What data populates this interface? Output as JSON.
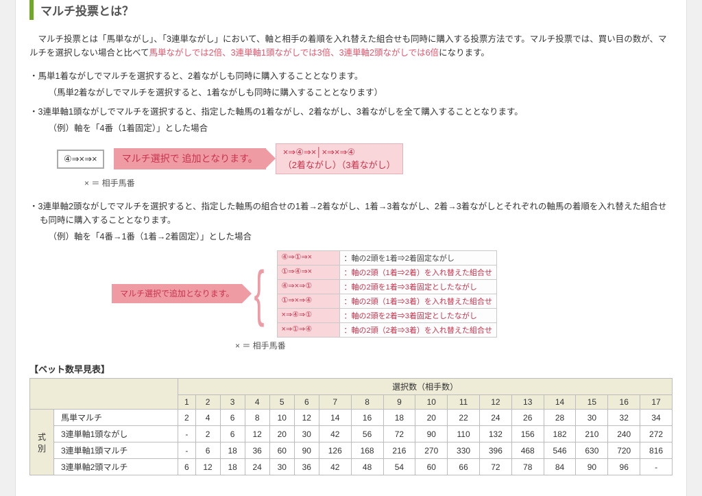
{
  "heading": "マルチ投票とは？",
  "intro": {
    "pre": "　マルチ投票とは「馬単ながし」、「3連単ながし」において、軸と相手の着順を入れ替えた組合せも同時に購入する投票方法です。マルチ投票では、買い目の数が、マルチを選択しない場合と比べて",
    "red": "馬単ながしでは2倍、3連単軸1頭ながしでは3倍、3連単軸2頭ながしでは6倍",
    "post": "になります。"
  },
  "bullet1": {
    "line1": "・馬単1着ながしでマルチを選択すると、2着ながしも同時に購入することとなります。",
    "line2": "（馬単2着ながしでマルチを選択すると、1着ながしも同時に購入することとなります）"
  },
  "bullet2": {
    "line1": "・3連単軸1頭ながしでマルチを選択すると、指定した軸馬の1着ながし、2着ながし、3着ながしを全て購入することとなります。",
    "line2": "（例）軸を「4番（1着固定）」とした場合"
  },
  "diagram1": {
    "pattern": "④⇒×⇒×",
    "callout": "マルチ選択で\n追加となります。",
    "result_line1": "×⇒④⇒×│×⇒×⇒④",
    "result_line2": "（2着ながし）（3着ながし）",
    "caption": "× ＝ 相手馬番"
  },
  "bullet3": {
    "line1": "・3連単軸2頭ながしでマルチを選択すると、指定した軸馬の組合せの1着→2着ながし、1着→3着ながし、2着→3着ながしとそれぞれの軸馬の着順を入れ替えた組合せも同時に購入することとなります。",
    "line2": "（例）軸を「4番→1番（1着→2着固定）」とした場合"
  },
  "diagram2": {
    "callout": "マルチ選択で追加となります。",
    "rows": [
      {
        "pat": "④⇒①⇒×",
        "desc": "：軸の2頭を1着⇒2着固定ながし",
        "sel": false
      },
      {
        "pat": "①⇒④⇒×",
        "desc": "：軸の2頭（1着⇒2着）を入れ替えた組合せ",
        "sel": true
      },
      {
        "pat": "④⇒×⇒①",
        "desc": "：軸の2頭を1着⇒3着固定としたながし",
        "sel": true
      },
      {
        "pat": "①⇒×⇒④",
        "desc": "：軸の2頭（1着⇒3着）を入れ替えた組合せ",
        "sel": true
      },
      {
        "pat": "×⇒④⇒①",
        "desc": "：軸の2頭を2着⇒3着固定としたながし",
        "sel": true
      },
      {
        "pat": "×⇒①⇒④",
        "desc": "：軸の2頭（2着⇒3着）を入れ替えた組合せ",
        "sel": true
      }
    ],
    "caption": "× ＝ 相手馬番"
  },
  "table": {
    "title": "【ベット数早見表】",
    "top_header": "選択数（相手数）",
    "side_header": "式別",
    "cols": [
      "1",
      "2",
      "3",
      "4",
      "5",
      "6",
      "7",
      "8",
      "9",
      "10",
      "11",
      "12",
      "13",
      "14",
      "15",
      "16",
      "17"
    ],
    "rows": [
      {
        "label": "馬単マルチ",
        "vals": [
          "2",
          "4",
          "6",
          "8",
          "10",
          "12",
          "14",
          "16",
          "18",
          "20",
          "22",
          "24",
          "26",
          "28",
          "30",
          "32",
          "34"
        ]
      },
      {
        "label": "3連単軸1頭ながし",
        "vals": [
          "-",
          "2",
          "6",
          "12",
          "20",
          "30",
          "42",
          "56",
          "72",
          "90",
          "110",
          "132",
          "156",
          "182",
          "210",
          "240",
          "272"
        ]
      },
      {
        "label": "3連単軸1頭マルチ",
        "vals": [
          "-",
          "6",
          "18",
          "36",
          "60",
          "90",
          "126",
          "168",
          "216",
          "270",
          "330",
          "396",
          "468",
          "546",
          "630",
          "720",
          "816"
        ]
      },
      {
        "label": "3連単軸2頭マルチ",
        "vals": [
          "6",
          "12",
          "18",
          "24",
          "30",
          "36",
          "42",
          "48",
          "54",
          "60",
          "66",
          "72",
          "78",
          "84",
          "90",
          "96",
          "-"
        ]
      }
    ]
  }
}
